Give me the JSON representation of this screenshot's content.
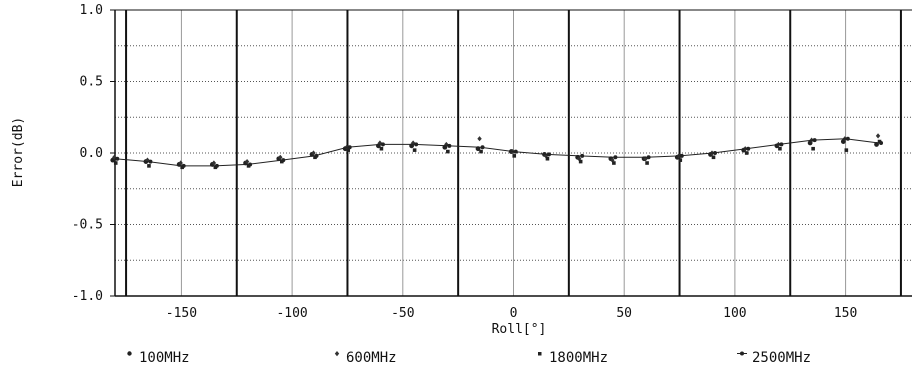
{
  "chart_data": {
    "type": "scatter",
    "title": "",
    "xlabel": "Roll[°]",
    "ylabel": "Error(dB)",
    "xlim": [
      -180,
      180
    ],
    "ylim": [
      -1.0,
      1.0
    ],
    "xticks": [
      -150,
      -100,
      -50,
      0,
      50,
      100,
      150
    ],
    "xtick_labels": [
      "-150",
      "-100",
      "-50",
      "0",
      "50",
      "100",
      "150"
    ],
    "yticks": [
      1.0,
      0.5,
      0.0,
      -0.5,
      -1.0
    ],
    "ytick_labels": [
      "1.0",
      "0.5",
      "0.0",
      "-0.5",
      "-1.0"
    ],
    "grid": true,
    "legend_position": "bottom",
    "x": [
      -180,
      -165,
      -150,
      -135,
      -120,
      -105,
      -90,
      -75,
      -60,
      -45,
      -30,
      -15,
      0,
      15,
      30,
      45,
      60,
      75,
      90,
      105,
      120,
      135,
      150,
      165
    ],
    "series": [
      {
        "name": "100MHz",
        "values": [
          -0.05,
          -0.06,
          -0.08,
          -0.08,
          -0.07,
          -0.04,
          -0.01,
          0.03,
          0.05,
          0.05,
          0.04,
          0.03,
          0.01,
          -0.01,
          -0.03,
          -0.04,
          -0.04,
          -0.03,
          -0.01,
          0.02,
          0.05,
          0.07,
          0.08,
          0.06
        ]
      },
      {
        "name": "600MHz",
        "values": [
          -0.03,
          -0.05,
          -0.07,
          -0.07,
          -0.06,
          -0.03,
          0.0,
          0.04,
          0.07,
          0.07,
          0.06,
          0.1,
          0.01,
          -0.02,
          -0.04,
          -0.05,
          -0.04,
          -0.02,
          0.0,
          0.03,
          0.06,
          0.09,
          0.1,
          0.12
        ]
      },
      {
        "name": "1800MHz",
        "values": [
          -0.07,
          -0.09,
          -0.1,
          -0.1,
          -0.09,
          -0.06,
          -0.03,
          0.02,
          0.03,
          0.02,
          0.01,
          0.01,
          -0.02,
          -0.04,
          -0.06,
          -0.07,
          -0.07,
          -0.05,
          -0.03,
          0.0,
          0.03,
          0.03,
          0.02,
          0.08
        ]
      },
      {
        "name": "2500MHz",
        "values": [
          -0.04,
          -0.06,
          -0.09,
          -0.09,
          -0.08,
          -0.05,
          -0.02,
          0.04,
          0.06,
          0.06,
          0.05,
          0.04,
          0.01,
          -0.01,
          -0.02,
          -0.03,
          -0.03,
          -0.02,
          0.0,
          0.03,
          0.06,
          0.09,
          0.1,
          0.07
        ]
      }
    ]
  }
}
